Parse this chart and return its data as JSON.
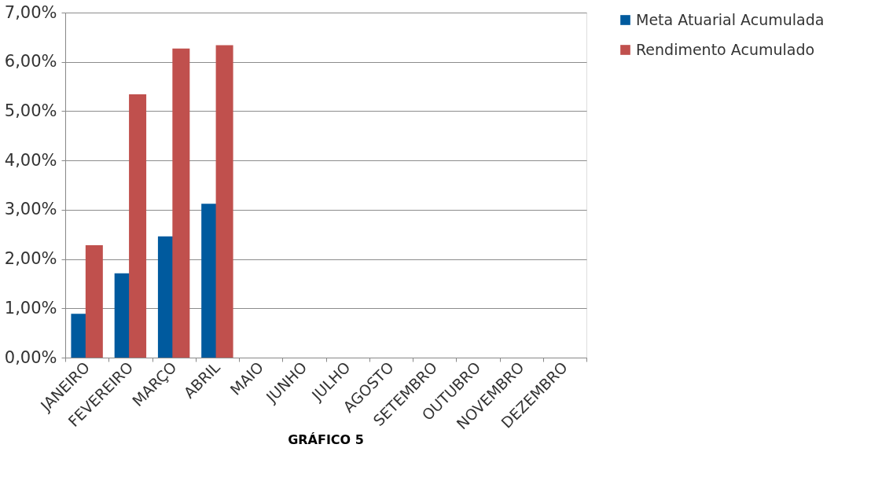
{
  "chart_data": {
    "type": "bar",
    "categories": [
      "JANEIRO",
      "FEVEREIRO",
      "MARÇO",
      "ABRIL",
      "MAIO",
      "JUNHO",
      "JULHO",
      "AGOSTO",
      "SETEMBRO",
      "OUTUBRO",
      "NOVEMBRO",
      "DEZEMBRO"
    ],
    "series": [
      {
        "name": "Meta Atuarial Acumulada",
        "color": "#005a9e",
        "values": [
          0.89,
          1.71,
          2.46,
          3.12,
          null,
          null,
          null,
          null,
          null,
          null,
          null,
          null
        ]
      },
      {
        "name": "Rendimento Acumulado",
        "color": "#c0504d",
        "values": [
          2.28,
          5.34,
          6.27,
          6.34,
          null,
          null,
          null,
          null,
          null,
          null,
          null,
          null
        ]
      }
    ],
    "ylim": [
      0,
      7
    ],
    "yticks": [
      {
        "value": 0,
        "label": "0,00%"
      },
      {
        "value": 1,
        "label": "1,00%"
      },
      {
        "value": 2,
        "label": "2,00%"
      },
      {
        "value": 3,
        "label": "3,00%"
      },
      {
        "value": 4,
        "label": "4,00%"
      },
      {
        "value": 5,
        "label": "5,00%"
      },
      {
        "value": 6,
        "label": "6,00%"
      },
      {
        "value": 7,
        "label": "7,00%"
      }
    ],
    "grid": "y",
    "legend": "right",
    "annotations": [
      "GRÁFICO 5"
    ]
  }
}
